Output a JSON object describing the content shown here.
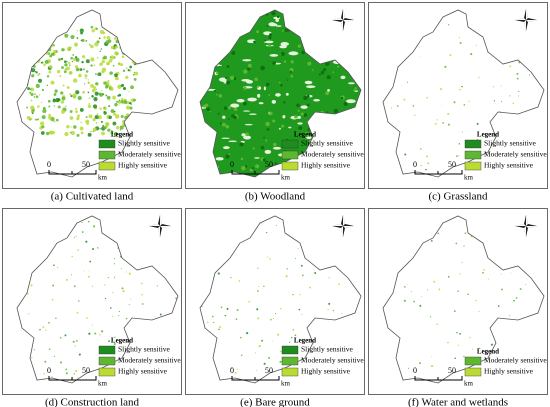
{
  "panels": [
    {
      "caption": "(a) Cultivated land",
      "legend": {
        "title": "Legend",
        "items": [
          "Slightly sensitive",
          "Moderately sensitive",
          "Highly sensitive"
        ]
      },
      "scale": {
        "start": "0",
        "end": "50",
        "unit": "km"
      }
    },
    {
      "caption": "(b) Woodland",
      "legend": {
        "title": "Legend",
        "items": [
          "Slightly sensitive",
          "Moderately sensitive",
          "Highly sensitive"
        ]
      },
      "scale": {
        "start": "0",
        "end": "50",
        "unit": "km"
      }
    },
    {
      "caption": "(c) Grassland",
      "legend": {
        "title": "Legend",
        "items": [
          "Slightly sensitive",
          "Moderately sensitive",
          "Highly sensitive"
        ]
      },
      "scale": {
        "start": "0",
        "end": "50",
        "unit": "km"
      }
    },
    {
      "caption": "(d) Construction land",
      "legend": {
        "title": "Legend",
        "items": [
          "Slightly sensitive",
          "Moderately sensitive",
          "Highly sensitive"
        ]
      },
      "scale": {
        "start": "0",
        "end": "50",
        "unit": "km"
      }
    },
    {
      "caption": "(e) Bare ground",
      "legend": {
        "title": "Legend",
        "items": [
          "Slightly sensitive",
          "Moderately sensitive",
          "Highly sensitive"
        ]
      },
      "scale": {
        "start": "0",
        "end": "50",
        "unit": "km"
      }
    },
    {
      "caption": "(f) Water and wetlands",
      "legend": {
        "title": "Legend",
        "items": [
          "Moderately sensitive",
          "Highly sensitive"
        ]
      },
      "scale": {
        "start": "0",
        "end": "50",
        "unit": "km"
      }
    }
  ]
}
